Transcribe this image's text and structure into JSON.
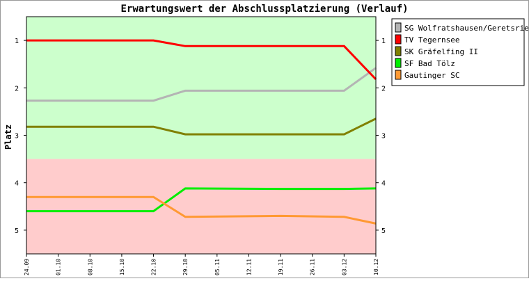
{
  "chart_data": {
    "type": "line",
    "title": "Erwartungswert der Abschlussplatzierung (Verlauf)",
    "xlabel": "",
    "ylabel": "Platz",
    "categories": [
      "24.09",
      "01.10",
      "08.10",
      "15.10",
      "22.10",
      "29.10",
      "05.11",
      "12.11",
      "19.11",
      "26.11",
      "03.12",
      "10.12"
    ],
    "x": [
      0,
      7,
      14,
      21,
      28,
      35,
      42,
      49,
      56,
      63,
      70,
      77
    ],
    "ylim": [
      0.5,
      5.5
    ],
    "yticks": [
      1,
      2,
      3,
      4,
      5
    ],
    "y_reversed": true,
    "zones": [
      {
        "from": 0.5,
        "to": 3.5,
        "color": "#ccffcc"
      },
      {
        "from": 3.5,
        "to": 5.5,
        "color": "#ffcccc"
      }
    ],
    "grid": false,
    "legend_position": "right",
    "series": [
      {
        "name": "SG Wolfratshausen/Geretsried",
        "color": "#b4b4b4",
        "x": [
          0,
          28,
          35,
          70,
          77
        ],
        "values": [
          2.27,
          2.27,
          2.06,
          2.06,
          1.58
        ]
      },
      {
        "name": "TV Tegernsee",
        "color": "#ff0000",
        "x": [
          0,
          28,
          35,
          70,
          77
        ],
        "values": [
          1.0,
          1.0,
          1.12,
          1.12,
          1.82
        ]
      },
      {
        "name": "SK Gräfelfing II",
        "color": "#808000",
        "x": [
          0,
          28,
          35,
          70,
          77
        ],
        "values": [
          2.82,
          2.82,
          2.98,
          2.98,
          2.65
        ]
      },
      {
        "name": "SF Bad Tölz",
        "color": "#00ee00",
        "x": [
          0,
          28,
          35,
          56,
          70,
          77
        ],
        "values": [
          4.6,
          4.6,
          4.12,
          4.13,
          4.13,
          4.12
        ]
      },
      {
        "name": "Gautinger SC",
        "color": "#ff9933",
        "x": [
          0,
          28,
          35,
          56,
          70,
          77
        ],
        "values": [
          4.3,
          4.3,
          4.72,
          4.7,
          4.72,
          4.86
        ]
      }
    ]
  }
}
